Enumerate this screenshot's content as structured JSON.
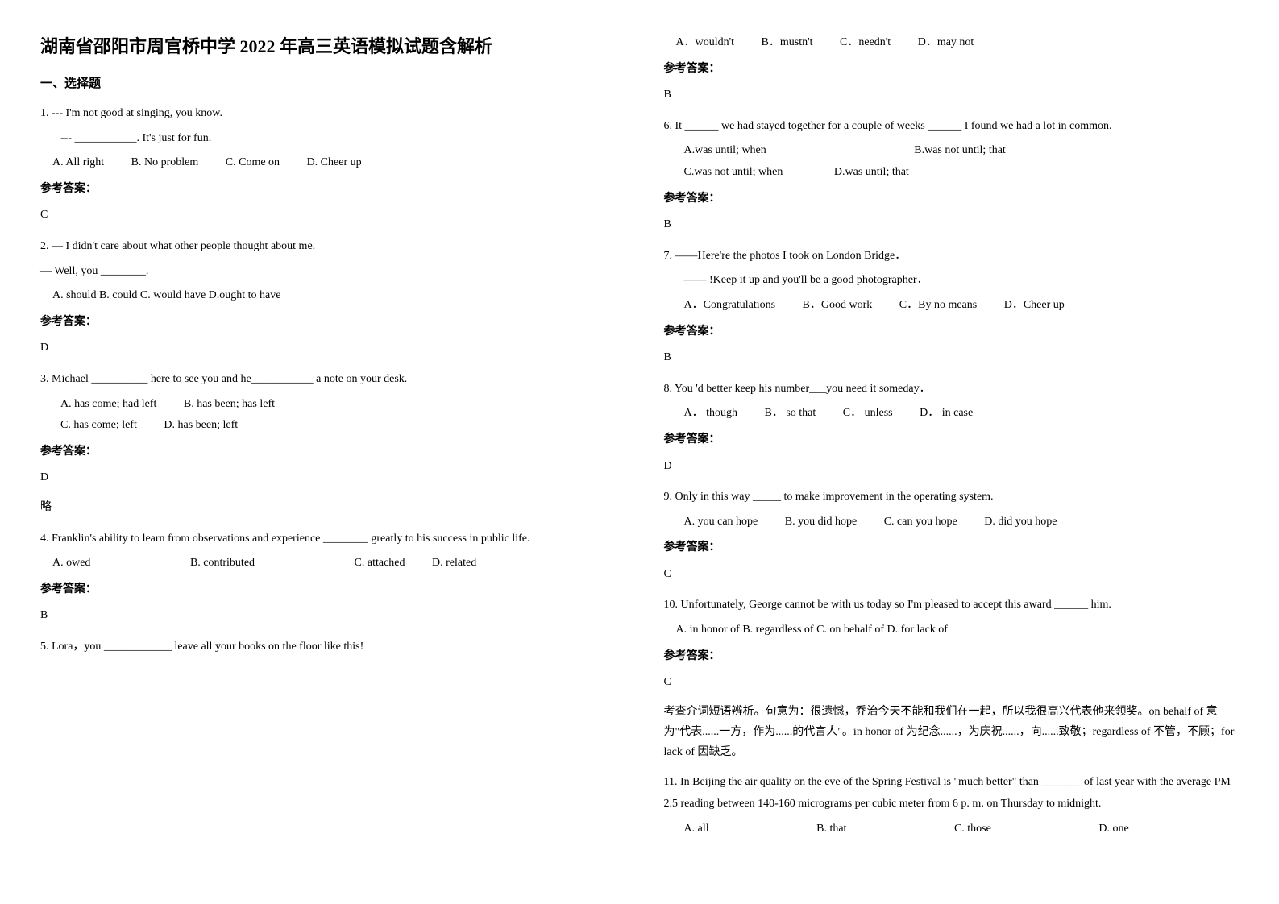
{
  "title": "湖南省邵阳市周官桥中学 2022 年高三英语模拟试题含解析",
  "section_header": "一、选择题",
  "answer_label": "参考答案：",
  "questions": {
    "q1": {
      "line1": "1. --- I'm not good at singing, you know.",
      "line2": "--- ___________. It's just for fun.",
      "optA": "A. All right",
      "optB": "B. No problem",
      "optC": "C. Come on",
      "optD": "D. Cheer up",
      "answer": "C"
    },
    "q2": {
      "line1": "2. — I didn't care about what other people thought about me.",
      "line2": "— Well, you ________.",
      "opts": "A. should   B. could   C. would have  D.ought to have",
      "answer": "D"
    },
    "q3": {
      "line1": "3. Michael __________ here to see you and he___________ a note on your desk.",
      "optA": "A. has come; had left",
      "optB": "B. has been; has left",
      "optC": "C. has come; left",
      "optD": "D. has been; left",
      "answer": "D",
      "extra": "略"
    },
    "q4": {
      "line1": "4. Franklin's ability to learn from observations and experience ________ greatly to his success in public life.",
      "optA": "A. owed",
      "optB": "B. contributed",
      "optC": "C. attached",
      "optD": "D. related",
      "answer": "B"
    },
    "q5": {
      "line1": "5. Lora，you ____________ leave all your books on the floor like this!",
      "optA": "A．wouldn't",
      "optB": "B．mustn't",
      "optC": "C．needn't",
      "optD": "D．may not",
      "answer": "B"
    },
    "q6": {
      "line1": "6. It ______ we had stayed together for a couple of weeks ______ I found we had a lot in common.",
      "optA": "A.was until; when",
      "optB": "B.was not until; that",
      "optC": "C.was not until; when",
      "optD": "D.was until; that",
      "answer": "B"
    },
    "q7": {
      "line1": "7. ——Here're the photos I took on London Bridge．",
      "line2": "——        !Keep it up and you'll be a good photographer．",
      "optA": "A．Congratulations",
      "optB": "B．Good work",
      "optC": "C．By no means",
      "optD": "D．Cheer up",
      "answer": "B"
    },
    "q8": {
      "line1": "8. You 'd better keep his number___you need it someday．",
      "optA": "A． though",
      "optB": "B． so that",
      "optC": "C． unless",
      "optD": "D． in case",
      "answer": "D"
    },
    "q9": {
      "line1": "9. Only in this way _____ to make improvement in the operating system.",
      "optA": "A. you can hope",
      "optB": "B. you did hope",
      "optC": "C. can you hope",
      "optD": "D. did you hope",
      "answer": "C"
    },
    "q10": {
      "line1": "10. Unfortunately, George cannot be with us today so I'm pleased to accept this award ______ him.",
      "opts": "A. in honor of   B. regardless of   C. on behalf of   D. for lack of",
      "answer": "C",
      "explanation": "考查介词短语辨析。句意为：很遗憾，乔治今天不能和我们在一起，所以我很高兴代表他来领奖。on behalf of 意为\"代表......一方，作为......的代言人\"。in honor of 为纪念......，为庆祝......，向......致敬；regardless of 不管，不顾；for lack of 因缺乏。"
    },
    "q11": {
      "line1": "11. In Beijing the air quality on the eve of the Spring Festival is \"much better\" than _______ of last year with the average PM 2.5 reading between 140-160 micrograms per cubic meter from 6 p. m. on Thursday to midnight.",
      "optA": "A. all",
      "optB": "B. that",
      "optC": "C. those",
      "optD": "D. one"
    }
  }
}
